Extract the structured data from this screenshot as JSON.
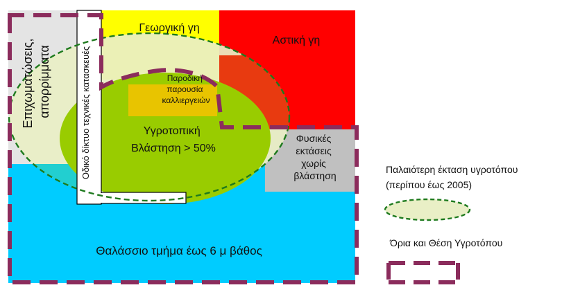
{
  "zones": {
    "landfill": {
      "label_lines": [
        "Επιχωματώσεις,",
        "απορρίμματα"
      ],
      "color": "#e4e4e4"
    },
    "agricultural": {
      "label": "Γεωργική γη",
      "color": "#ffff00"
    },
    "urban": {
      "label": "Αστική γη",
      "color": "#ff0000"
    },
    "road": {
      "label": "Οδικό δίκτυο τεχνικές κατασκευές",
      "color": "#ffffff"
    },
    "temporary_crops": {
      "label_lines": [
        "Παροδική",
        "παρουσία",
        "καλλιεργειών"
      ],
      "color": "#e8c400"
    },
    "wetland_vegetation": {
      "label_lines": [
        "Υγροτοπική",
        "Βλάστηση > 50%"
      ],
      "color": "#99cc00"
    },
    "natural_barren": {
      "label_lines": [
        "Φυσικές",
        "εκτάσεις",
        "χωρίς",
        "βλάστηση"
      ],
      "color": "#c0c0c0"
    },
    "sea": {
      "label": "Θαλάσσιο τμήμα έως 6 μ βάθος",
      "color": "#00ccff"
    }
  },
  "legend": {
    "former_extent": {
      "label_lines": [
        "Παλαιότερη έκταση υγροτόπου",
        "(περίπου έως 2005)"
      ],
      "color": "#1e7a1e"
    },
    "boundary": {
      "label": "Όρια και Θέση Υγροτόπου",
      "color": "#8b2c5c"
    }
  }
}
